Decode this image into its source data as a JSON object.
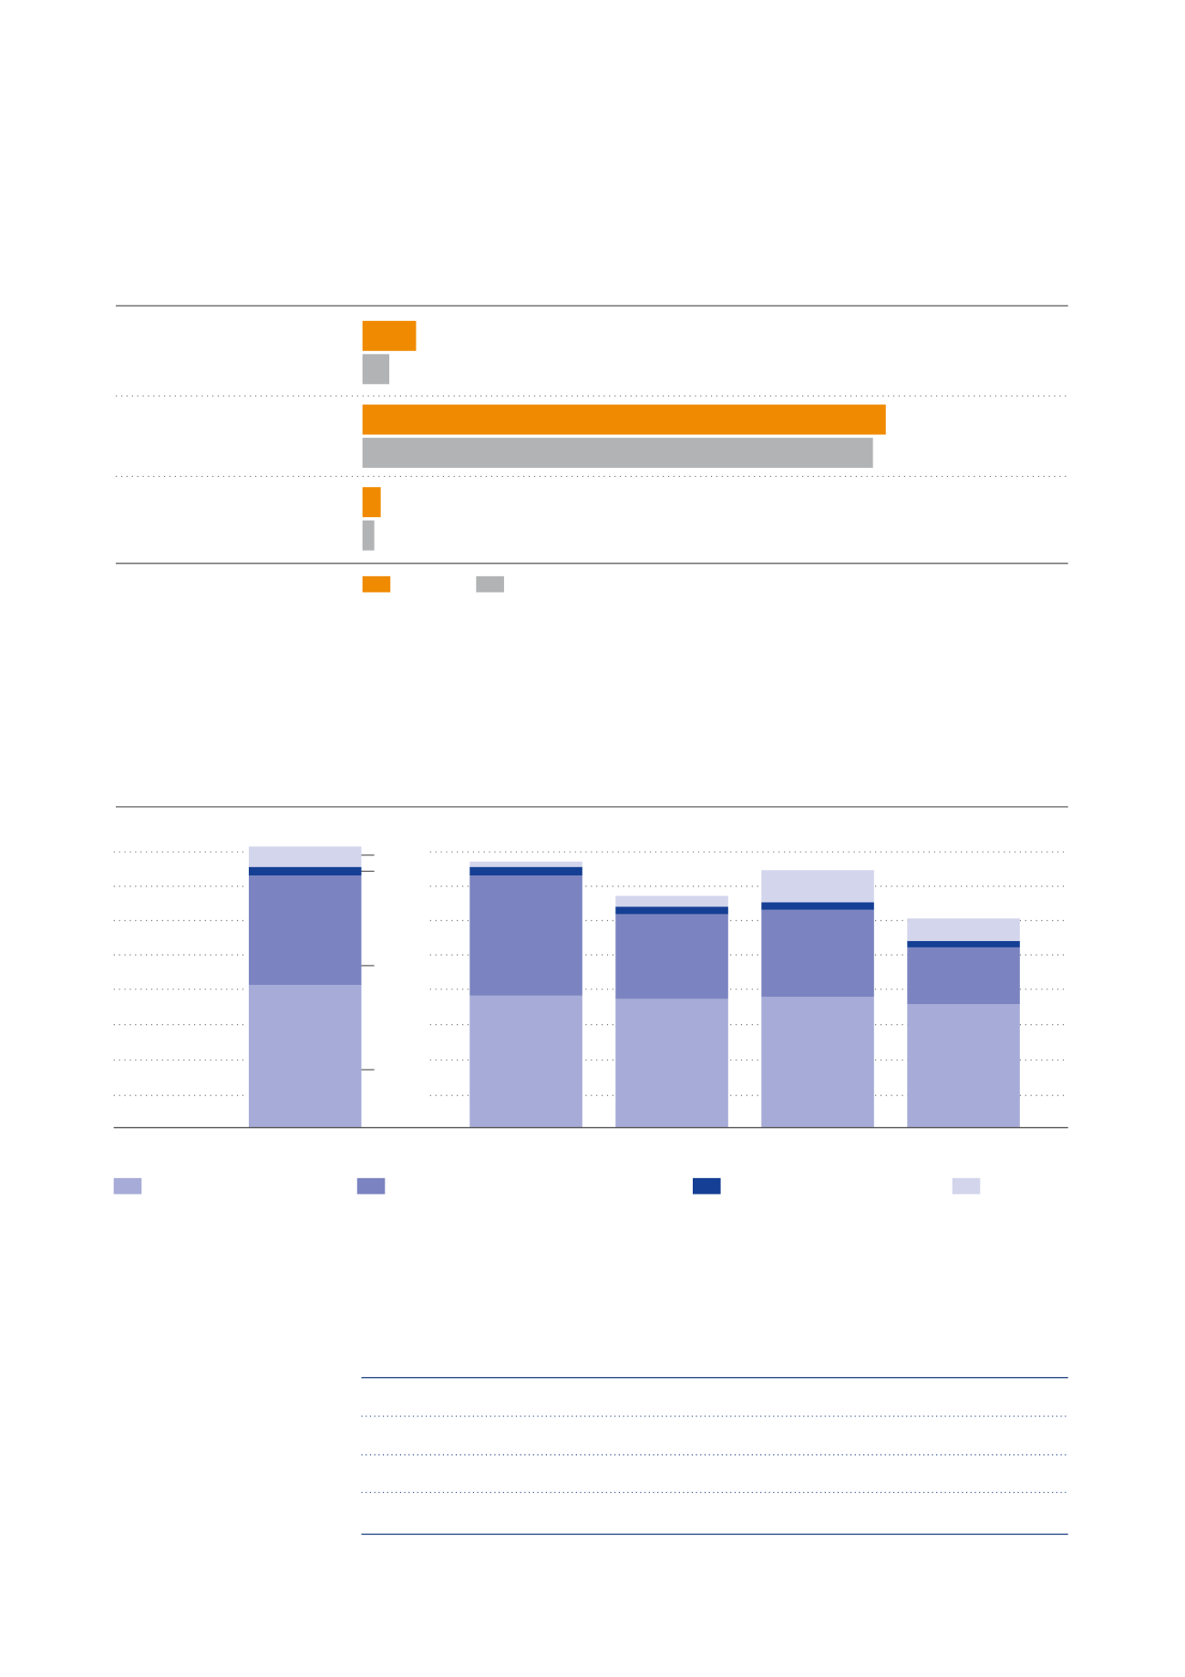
{
  "chart_data": [
    {
      "type": "hbar",
      "categories": [
        null,
        null,
        null
      ],
      "series": [
        {
          "color": "#f08a00",
          "values": [
            50,
            488,
            17
          ]
        },
        {
          "color": "#b2b3b4",
          "values": [
            25,
            476,
            11
          ]
        }
      ],
      "xlim": [
        0,
        658
      ]
    },
    {
      "type": "stacked_bar",
      "categories": [
        null,
        null,
        null,
        null,
        null
      ],
      "series": [
        {
          "color": "#a6abd7",
          "values": [
            133,
            123,
            120,
            122,
            115
          ]
        },
        {
          "color": "#7b84c0",
          "values": [
            102,
            112,
            79,
            81,
            53
          ]
        },
        {
          "color": "#153f94",
          "values": [
            8,
            8,
            7,
            7,
            6
          ]
        },
        {
          "color": "#d3d5ec",
          "values": [
            19,
            5,
            10,
            30,
            21
          ]
        }
      ],
      "ylim": [
        0,
        257
      ],
      "yticks": [
        30,
        63,
        96,
        129,
        161,
        193,
        225,
        257
      ],
      "grid": true
    }
  ]
}
